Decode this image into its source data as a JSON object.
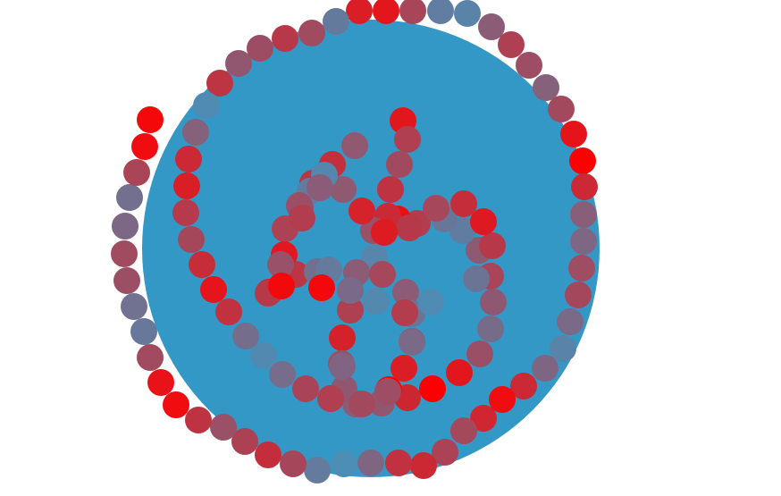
{
  "colors": {
    "background": "#ffffff",
    "disc": "#3498c6",
    "dot_red": "#ff0000",
    "dot_blue": "#4a8fb8"
  }
}
